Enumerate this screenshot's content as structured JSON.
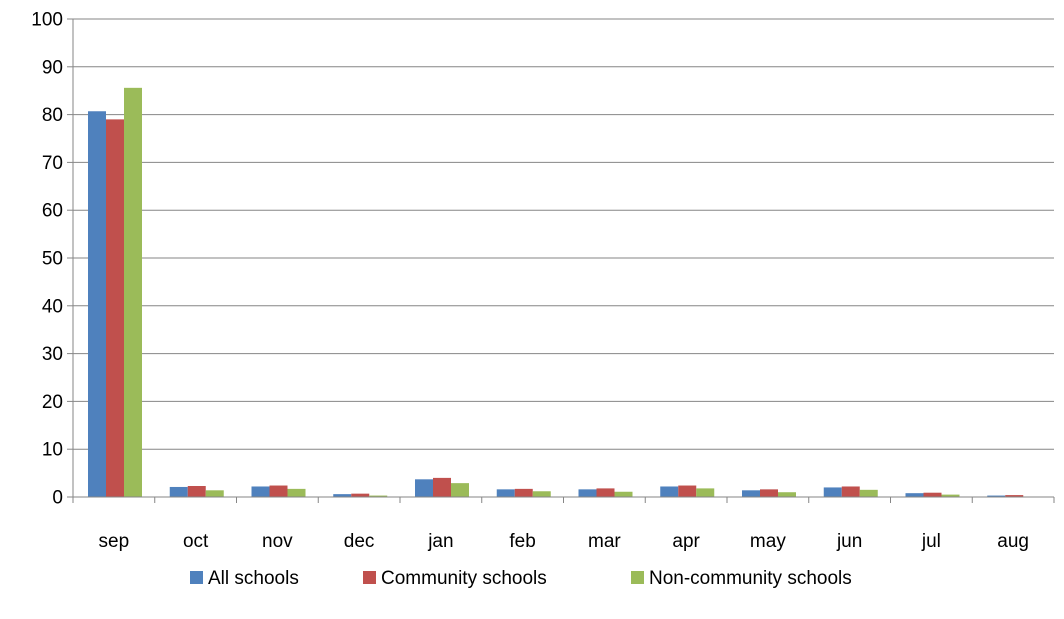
{
  "chart_data": {
    "type": "bar",
    "title": "",
    "xlabel": "",
    "ylabel": "",
    "ylim": [
      0,
      100
    ],
    "yticks": [
      0,
      10,
      20,
      30,
      40,
      50,
      60,
      70,
      80,
      90,
      100
    ],
    "grid": true,
    "legend_position": "bottom",
    "categories": [
      "sep",
      "oct",
      "nov",
      "dec",
      "jan",
      "feb",
      "mar",
      "apr",
      "may",
      "jun",
      "jul",
      "aug"
    ],
    "series": [
      {
        "name": "All schools",
        "color": "#4F81BD",
        "values": [
          80.7,
          2.1,
          2.2,
          0.6,
          3.7,
          1.6,
          1.6,
          2.2,
          1.4,
          2.0,
          0.8,
          0.3
        ]
      },
      {
        "name": "Community schools",
        "color": "#C0504D",
        "values": [
          79.0,
          2.3,
          2.4,
          0.7,
          4.0,
          1.7,
          1.8,
          2.4,
          1.6,
          2.2,
          0.9,
          0.4
        ]
      },
      {
        "name": "Non-community schools",
        "color": "#9BBB59",
        "values": [
          85.6,
          1.4,
          1.7,
          0.3,
          2.9,
          1.2,
          1.1,
          1.8,
          1.0,
          1.5,
          0.5,
          0.1
        ]
      }
    ]
  }
}
